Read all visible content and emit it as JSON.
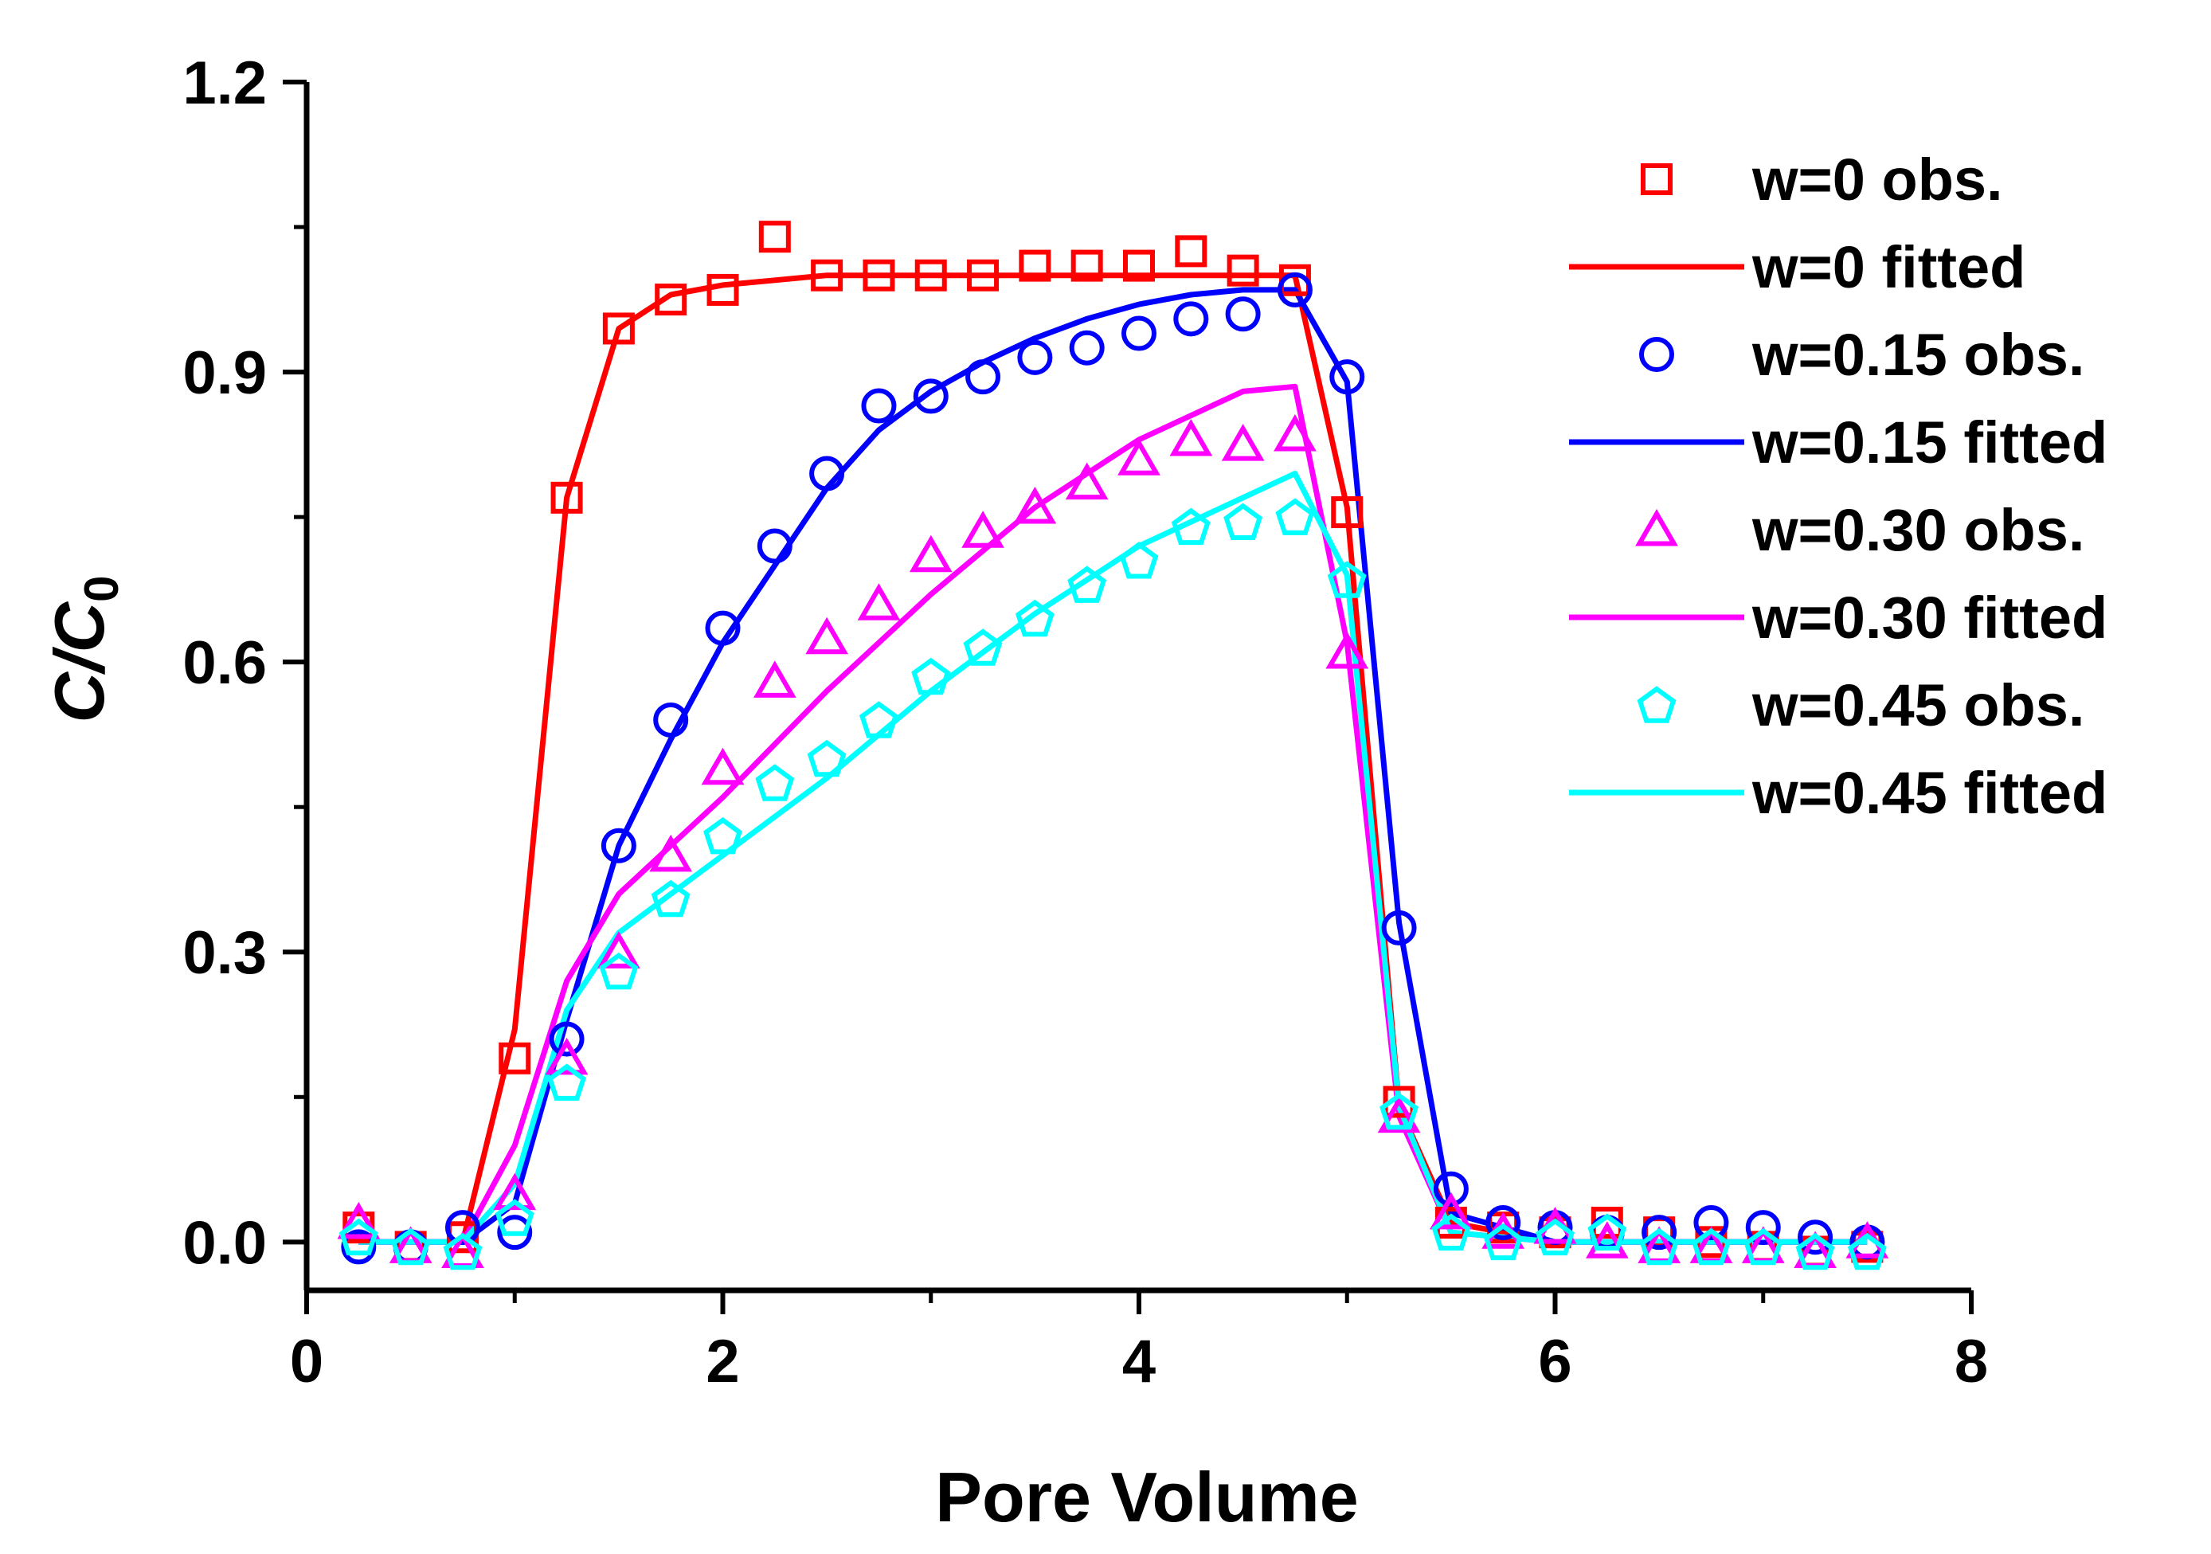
{
  "chart_data": {
    "type": "scatter",
    "xlabel": "Pore Volume",
    "ylabel": {
      "main": "C/C",
      "sub": "0"
    },
    "xlim": [
      0,
      8
    ],
    "ylim": [
      -0.05,
      1.2
    ],
    "x_ticks": [
      0,
      2,
      4,
      6,
      8
    ],
    "x_tick_labels": [
      "0",
      "2",
      "4",
      "6",
      "8"
    ],
    "y_ticks": [
      0.0,
      0.3,
      0.6,
      0.9,
      1.2
    ],
    "y_tick_labels": [
      "0.0",
      "0.3",
      "0.6",
      "0.9",
      "1.2"
    ],
    "grid": false,
    "legend_position": "top-right",
    "series": [
      {
        "name": "w=0 obs.",
        "kind": "markers",
        "marker": "square",
        "color": "#ff0000",
        "x": [
          0.25,
          0.5,
          0.75,
          1.0,
          1.25,
          1.5,
          1.75,
          2.0,
          2.25,
          2.5,
          2.75,
          3.0,
          3.25,
          3.5,
          3.75,
          4.0,
          4.25,
          4.5,
          4.75,
          5.0,
          5.25,
          5.5,
          5.75,
          6.0,
          6.25,
          6.5,
          6.75,
          7.0,
          7.25,
          7.5
        ],
        "y": [
          0.015,
          -0.005,
          0.005,
          0.19,
          0.77,
          0.945,
          0.975,
          0.985,
          1.04,
          1.0,
          1.0,
          1.0,
          1.0,
          1.01,
          1.01,
          1.01,
          1.025,
          1.005,
          0.995,
          0.755,
          0.145,
          0.02,
          0.015,
          0.01,
          0.02,
          0.01,
          0.0,
          -0.005,
          -0.01,
          -0.005
        ]
      },
      {
        "name": "w=0 fitted",
        "kind": "line",
        "color": "#ff0000",
        "x": [
          0.25,
          0.5,
          0.75,
          1.0,
          1.25,
          1.5,
          1.75,
          2.0,
          2.25,
          2.5,
          3.0,
          3.5,
          4.0,
          4.5,
          4.75,
          5.0,
          5.25,
          5.5,
          6.0,
          6.5,
          7.0,
          7.5
        ],
        "y": [
          0.0,
          0.0,
          0.0,
          0.22,
          0.77,
          0.945,
          0.98,
          0.99,
          0.995,
          1.0,
          1.0,
          1.0,
          1.0,
          1.0,
          1.0,
          0.76,
          0.14,
          0.02,
          0.0,
          0.0,
          0.0,
          0.0
        ]
      },
      {
        "name": "w=0.15 obs.",
        "kind": "markers",
        "marker": "circle",
        "color": "#0000ff",
        "x": [
          0.25,
          0.5,
          0.75,
          1.0,
          1.25,
          1.5,
          1.75,
          2.0,
          2.25,
          2.5,
          2.75,
          3.0,
          3.25,
          3.5,
          3.75,
          4.0,
          4.25,
          4.5,
          4.75,
          5.0,
          5.25,
          5.5,
          5.75,
          6.0,
          6.25,
          6.5,
          6.75,
          7.0,
          7.25,
          7.5
        ],
        "y": [
          -0.005,
          -0.005,
          0.015,
          0.01,
          0.21,
          0.41,
          0.54,
          0.635,
          0.72,
          0.795,
          0.865,
          0.875,
          0.895,
          0.915,
          0.925,
          0.94,
          0.955,
          0.96,
          0.985,
          0.895,
          0.325,
          0.055,
          0.02,
          0.015,
          0.01,
          0.01,
          0.02,
          0.015,
          0.005,
          0.0
        ]
      },
      {
        "name": "w=0.15 fitted",
        "kind": "line",
        "color": "#0000ff",
        "x": [
          0.25,
          0.5,
          0.75,
          1.0,
          1.25,
          1.5,
          1.75,
          2.0,
          2.25,
          2.5,
          2.75,
          3.0,
          3.25,
          3.5,
          3.75,
          4.0,
          4.25,
          4.5,
          4.75,
          5.0,
          5.25,
          5.5,
          6.0,
          6.5,
          7.0,
          7.5
        ],
        "y": [
          0.0,
          0.0,
          0.0,
          0.04,
          0.23,
          0.41,
          0.52,
          0.62,
          0.7,
          0.78,
          0.84,
          0.88,
          0.91,
          0.935,
          0.955,
          0.97,
          0.98,
          0.985,
          0.985,
          0.89,
          0.33,
          0.03,
          0.0,
          0.0,
          0.0,
          0.0
        ]
      },
      {
        "name": "w=0.30 obs.",
        "kind": "markers",
        "marker": "triangle",
        "color": "#ff00ff",
        "x": [
          0.25,
          0.5,
          0.75,
          1.0,
          1.25,
          1.5,
          1.75,
          2.0,
          2.25,
          2.5,
          2.75,
          3.0,
          3.25,
          3.5,
          3.75,
          4.0,
          4.25,
          4.5,
          4.75,
          5.0,
          5.25,
          5.5,
          5.75,
          6.0,
          6.25,
          6.5,
          6.75,
          7.0,
          7.25,
          7.5
        ],
        "y": [
          0.02,
          -0.005,
          -0.01,
          0.05,
          0.19,
          0.3,
          0.4,
          0.49,
          0.58,
          0.625,
          0.66,
          0.71,
          0.735,
          0.76,
          0.785,
          0.81,
          0.83,
          0.825,
          0.835,
          0.61,
          0.13,
          0.03,
          0.01,
          0.015,
          0.0,
          -0.005,
          -0.005,
          -0.005,
          -0.01,
          0.0
        ]
      },
      {
        "name": "w=0.30 fitted",
        "kind": "line",
        "color": "#ff00ff",
        "x": [
          0.25,
          0.5,
          0.75,
          1.0,
          1.25,
          1.5,
          1.75,
          2.0,
          2.5,
          3.0,
          3.5,
          4.0,
          4.5,
          4.75,
          5.0,
          5.25,
          5.5,
          6.0,
          6.5,
          7.0,
          7.5
        ],
        "y": [
          0.0,
          0.0,
          0.0,
          0.1,
          0.27,
          0.36,
          0.41,
          0.46,
          0.57,
          0.67,
          0.76,
          0.83,
          0.88,
          0.885,
          0.62,
          0.13,
          0.01,
          0.0,
          0.0,
          0.0,
          0.0
        ]
      },
      {
        "name": "w=0.45 obs.",
        "kind": "markers",
        "marker": "pentagon",
        "color": "#00ffff",
        "x": [
          0.25,
          0.5,
          0.75,
          1.0,
          1.25,
          1.5,
          1.75,
          2.0,
          2.25,
          2.5,
          2.75,
          3.0,
          3.25,
          3.5,
          3.75,
          4.0,
          4.25,
          4.5,
          4.75,
          5.0,
          5.25,
          5.5,
          5.75,
          6.0,
          6.25,
          6.5,
          6.75,
          7.0,
          7.25,
          7.5
        ],
        "y": [
          0.005,
          -0.005,
          -0.01,
          0.025,
          0.165,
          0.28,
          0.355,
          0.42,
          0.475,
          0.5,
          0.54,
          0.585,
          0.615,
          0.645,
          0.68,
          0.705,
          0.74,
          0.745,
          0.75,
          0.685,
          0.135,
          0.01,
          0.0,
          0.005,
          0.01,
          -0.005,
          -0.005,
          -0.005,
          -0.01,
          -0.01
        ]
      },
      {
        "name": "w=0.45 fitted",
        "kind": "line",
        "color": "#00ffff",
        "x": [
          0.25,
          0.5,
          0.75,
          1.0,
          1.25,
          1.5,
          1.75,
          2.0,
          2.5,
          3.0,
          3.5,
          4.0,
          4.5,
          4.75,
          5.0,
          5.25,
          5.5,
          6.0,
          6.5,
          7.0,
          7.5
        ],
        "y": [
          0.0,
          0.0,
          0.0,
          0.06,
          0.24,
          0.32,
          0.36,
          0.4,
          0.48,
          0.57,
          0.65,
          0.72,
          0.77,
          0.795,
          0.69,
          0.14,
          0.01,
          0.0,
          0.0,
          0.0,
          0.0
        ]
      }
    ]
  }
}
